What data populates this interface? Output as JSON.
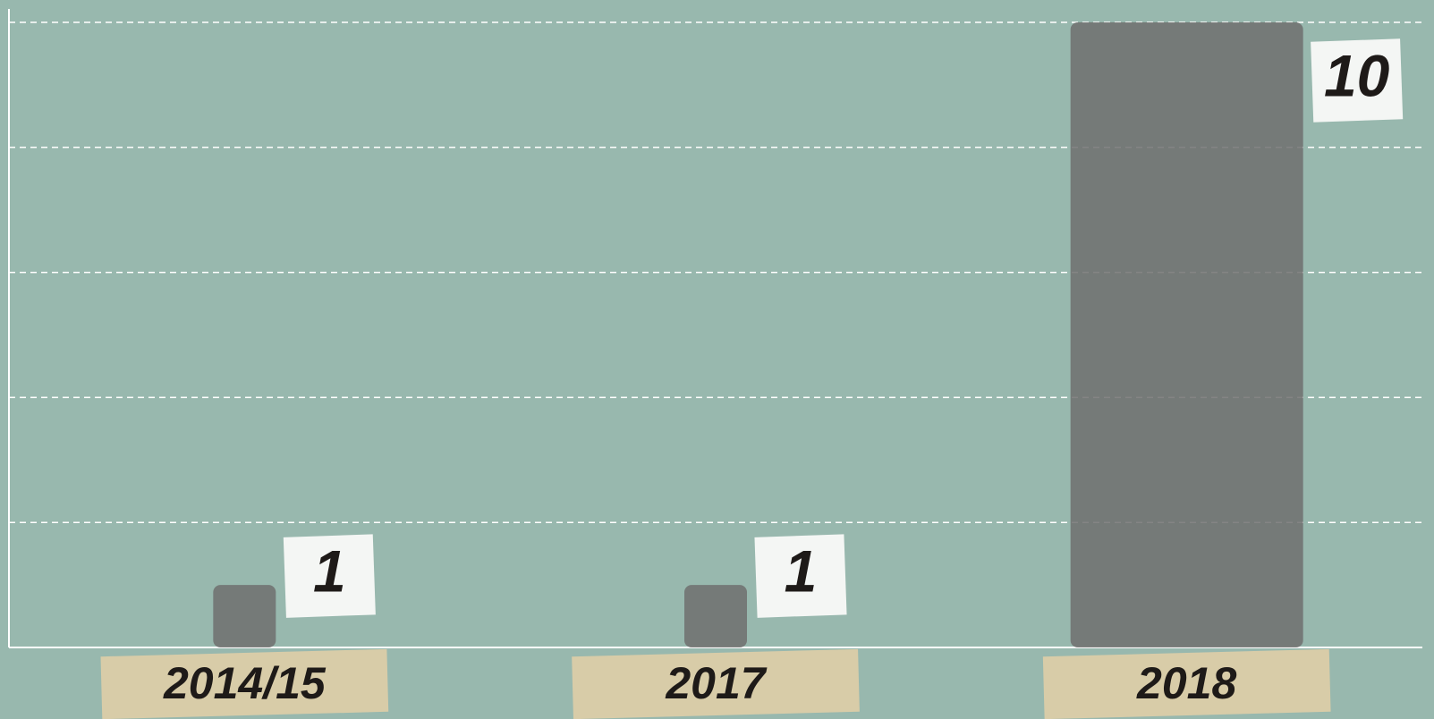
{
  "chart_data": {
    "type": "bar",
    "categories": [
      "2014/15",
      "2017",
      "2018"
    ],
    "values": [
      1,
      1,
      10
    ],
    "color": "#6f6f6f",
    "ylim": [
      0,
      10
    ],
    "yticks": [
      0,
      2,
      4,
      6,
      8,
      10
    ],
    "grid": true
  }
}
